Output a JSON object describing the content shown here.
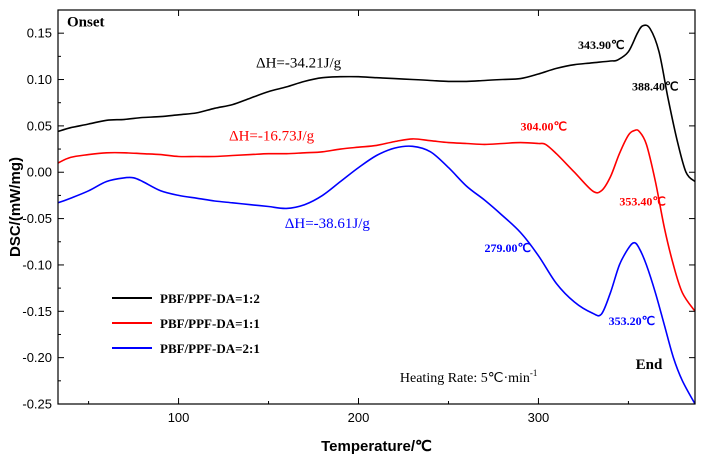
{
  "chart_data": {
    "type": "line",
    "xlabel": "Temperature/℃",
    "ylabel": "DSC/(mW/mg)",
    "xlim": [
      33,
      387
    ],
    "ylim": [
      -0.25,
      0.175
    ],
    "xticks": [
      100,
      200,
      300
    ],
    "yticks": [
      -0.25,
      -0.2,
      -0.15,
      -0.1,
      -0.05,
      0.0,
      0.05,
      0.1,
      0.15
    ],
    "ytick_labels": [
      "-0.25",
      "-0.20",
      "-0.15",
      "-0.10",
      "-0.05",
      "0.00",
      "0.05",
      "0.10",
      "0.15"
    ],
    "legend_position": "bottom-left",
    "series": [
      {
        "name": "PBF/PPF-DA=1:2",
        "color": "#000000",
        "x": [
          33,
          40,
          50,
          60,
          70,
          80,
          90,
          100,
          110,
          120,
          130,
          140,
          150,
          160,
          170,
          180,
          190,
          200,
          210,
          220,
          230,
          240,
          250,
          260,
          270,
          280,
          290,
          300,
          310,
          320,
          330,
          340,
          343.9,
          350,
          355,
          358,
          362,
          367,
          372,
          377,
          382,
          387
        ],
        "y": [
          0.044,
          0.048,
          0.052,
          0.056,
          0.057,
          0.059,
          0.06,
          0.062,
          0.064,
          0.069,
          0.073,
          0.08,
          0.087,
          0.092,
          0.098,
          0.102,
          0.103,
          0.103,
          0.102,
          0.101,
          0.1,
          0.099,
          0.098,
          0.098,
          0.099,
          0.1,
          0.101,
          0.106,
          0.112,
          0.116,
          0.118,
          0.12,
          0.121,
          0.13,
          0.15,
          0.158,
          0.155,
          0.13,
          0.08,
          0.035,
          0.0,
          -0.01
        ]
      },
      {
        "name": "PBF/PPF-DA=1:1",
        "color": "#ff0000",
        "x": [
          33,
          40,
          50,
          60,
          70,
          80,
          90,
          100,
          110,
          120,
          130,
          140,
          150,
          160,
          170,
          180,
          190,
          200,
          210,
          220,
          230,
          240,
          250,
          260,
          270,
          280,
          290,
          300,
          304,
          310,
          320,
          330,
          335,
          340,
          345,
          350,
          353.4,
          356,
          360,
          365,
          370,
          375,
          380,
          387
        ],
        "y": [
          0.01,
          0.016,
          0.019,
          0.021,
          0.021,
          0.02,
          0.019,
          0.017,
          0.017,
          0.017,
          0.018,
          0.019,
          0.02,
          0.02,
          0.021,
          0.022,
          0.025,
          0.027,
          0.029,
          0.033,
          0.036,
          0.034,
          0.032,
          0.031,
          0.03,
          0.031,
          0.032,
          0.031,
          0.03,
          0.02,
          0.0,
          -0.02,
          -0.02,
          -0.005,
          0.02,
          0.04,
          0.045,
          0.044,
          0.03,
          -0.01,
          -0.06,
          -0.1,
          -0.13,
          -0.15
        ]
      },
      {
        "name": "PBF/PPF-DA=2:1",
        "color": "#0000ff",
        "x": [
          33,
          40,
          50,
          60,
          70,
          75,
          80,
          90,
          100,
          110,
          120,
          130,
          140,
          150,
          160,
          170,
          180,
          190,
          200,
          210,
          220,
          230,
          240,
          250,
          260,
          270,
          279,
          290,
          300,
          310,
          320,
          330,
          335,
          340,
          345,
          350,
          353.2,
          356,
          360,
          365,
          370,
          375,
          380,
          387
        ],
        "y": [
          -0.033,
          -0.028,
          -0.02,
          -0.01,
          -0.006,
          -0.006,
          -0.01,
          -0.02,
          -0.025,
          -0.028,
          -0.031,
          -0.033,
          -0.035,
          -0.037,
          -0.039,
          -0.035,
          -0.025,
          -0.01,
          0.005,
          0.018,
          0.026,
          0.028,
          0.022,
          0.005,
          -0.015,
          -0.03,
          -0.045,
          -0.065,
          -0.09,
          -0.12,
          -0.14,
          -0.152,
          -0.153,
          -0.13,
          -0.1,
          -0.082,
          -0.076,
          -0.082,
          -0.1,
          -0.13,
          -0.165,
          -0.2,
          -0.225,
          -0.25
        ]
      }
    ],
    "annotations": [
      {
        "text": "Onset",
        "x": 38,
        "y": 0.157,
        "color": "#000000",
        "bold": true,
        "size": 15
      },
      {
        "text": "End",
        "x": 354,
        "y": -0.212,
        "color": "#000000",
        "bold": true,
        "size": 15
      },
      {
        "text": "ΔH=-34.21J/g",
        "x": 143,
        "y": 0.113,
        "color": "#000000",
        "bold": false,
        "size": 15
      },
      {
        "text": "ΔH=-16.73J/g",
        "x": 128,
        "y": 0.034,
        "color": "#ff0000",
        "bold": false,
        "size": 15
      },
      {
        "text": "ΔH=-38.61J/g",
        "x": 159,
        "y": -0.06,
        "color": "#0000ff",
        "bold": false,
        "size": 15
      },
      {
        "text": "343.90℃",
        "x": 322,
        "y": 0.133,
        "color": "#000000",
        "bold": true,
        "size": 12
      },
      {
        "text": "388.40℃",
        "x": 352,
        "y": 0.088,
        "color": "#000000",
        "bold": true,
        "size": 12
      },
      {
        "text": "304.00℃",
        "x": 290,
        "y": 0.045,
        "color": "#ff0000",
        "bold": true,
        "size": 12
      },
      {
        "text": "353.40℃",
        "x": 345,
        "y": -0.036,
        "color": "#ff0000",
        "bold": true,
        "size": 12
      },
      {
        "text": "279.00℃",
        "x": 270,
        "y": -0.086,
        "color": "#0000ff",
        "bold": true,
        "size": 12
      },
      {
        "text": "353.20℃",
        "x": 339,
        "y": -0.165,
        "color": "#0000ff",
        "bold": true,
        "size": 12
      }
    ],
    "heating_rate": {
      "prefix": "Heating Rate: 5℃·min",
      "superscript": "-1",
      "x": 223,
      "y": -0.226,
      "color": "#000000"
    }
  }
}
